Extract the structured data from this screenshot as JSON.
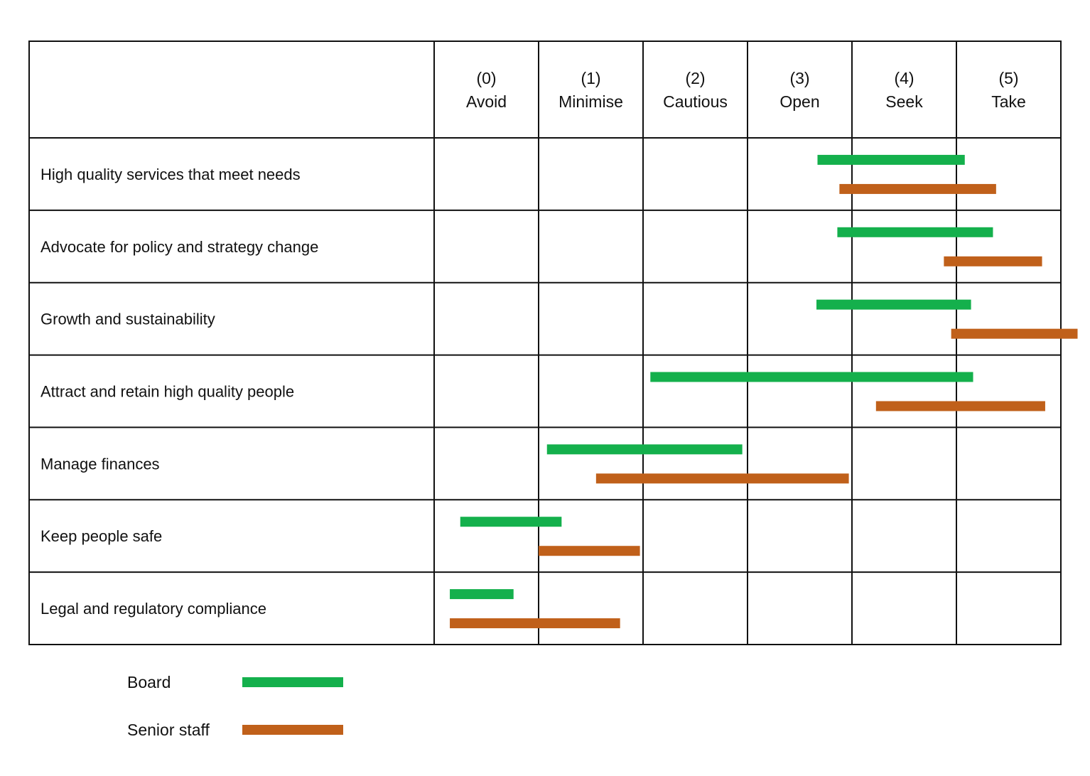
{
  "chart_data": {
    "type": "range-bar",
    "title": "",
    "columns": [
      {
        "number": "(0)",
        "label": "Avoid"
      },
      {
        "number": "(1)",
        "label": "Minimise"
      },
      {
        "number": "(2)",
        "label": "Cautious"
      },
      {
        "number": "(3)",
        "label": "Open"
      },
      {
        "number": "(4)",
        "label": "Seek"
      },
      {
        "number": "(5)",
        "label": "Take"
      }
    ],
    "scale": [
      0,
      6
    ],
    "categories": [
      "High quality services that meet needs",
      "Advocate for policy and strategy change",
      "Growth and sustainability",
      "Attract and retain high quality people",
      "Manage finances",
      "Keep people safe",
      "Legal and regulatory compliance"
    ],
    "series": [
      {
        "name": "Board",
        "color": "#14b04c",
        "ranges": [
          [
            3.67,
            5.08
          ],
          [
            3.86,
            5.35
          ],
          [
            3.66,
            5.14
          ],
          [
            2.07,
            5.16
          ],
          [
            1.08,
            2.95
          ],
          [
            0.25,
            1.22
          ],
          [
            0.15,
            0.76
          ]
        ]
      },
      {
        "name": "Senior staff",
        "color": "#c0601a",
        "ranges": [
          [
            3.88,
            5.38
          ],
          [
            4.88,
            5.82
          ],
          [
            4.95,
            6.16
          ],
          [
            4.23,
            5.85
          ],
          [
            1.55,
            3.97
          ],
          [
            1.0,
            1.97
          ],
          [
            0.15,
            1.78
          ]
        ]
      }
    ],
    "legend": {
      "position": "bottom-left"
    }
  }
}
